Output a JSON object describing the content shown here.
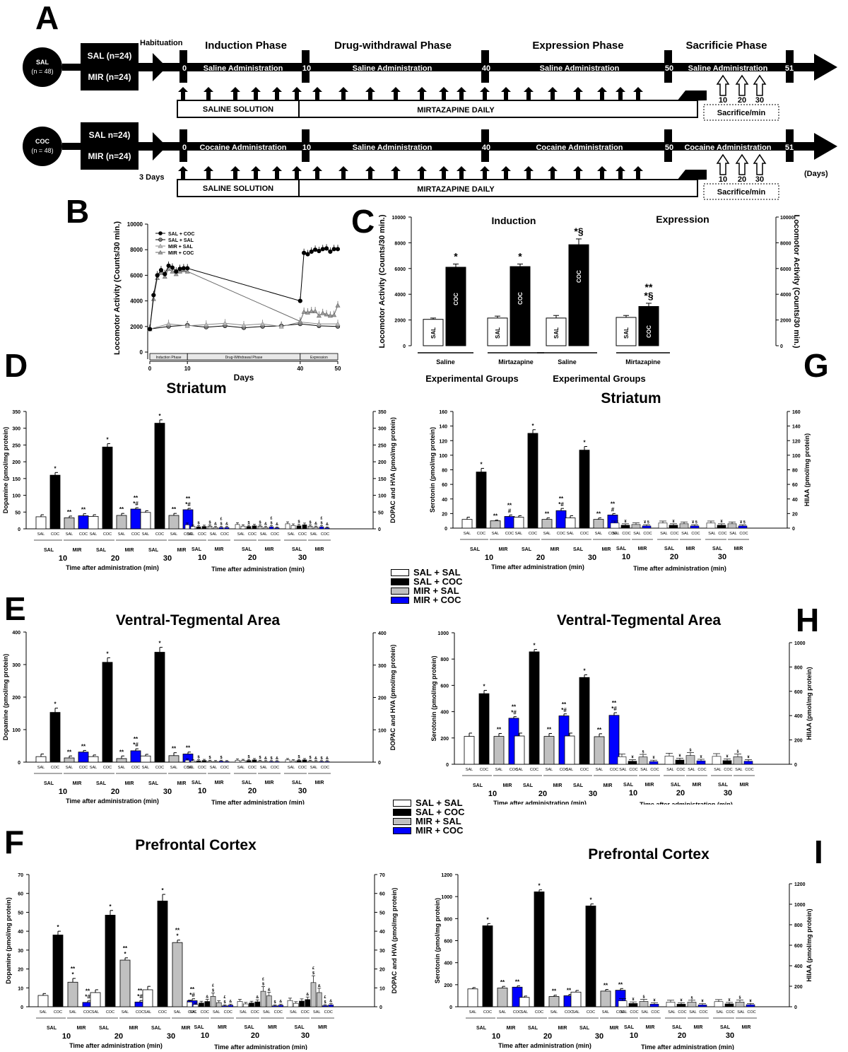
{
  "panels": {
    "A": "A",
    "B": "B",
    "C": "C",
    "D": "D",
    "E": "E",
    "F": "F",
    "G": "G",
    "H": "H",
    "I": "I"
  },
  "colors": {
    "sal_sal": "#ffffff",
    "sal_coc": "#000000",
    "mir_sal": "#c0c0c0",
    "mir_coc": "#0000ff"
  },
  "timeline": {
    "habituation": "Habituation",
    "three_days": "3 Days",
    "days_unit": "(Days)",
    "phases": [
      "Induction Phase",
      "Drug-withdrawal Phase",
      "Expression Phase",
      "Sacrificie Phase"
    ],
    "ticks": [
      "0",
      "10",
      "40",
      "50",
      "51"
    ],
    "sacrifice_times": [
      "10",
      "20",
      "30"
    ],
    "sacrifice_label": "Sacrifice/min",
    "saline_solution": "SALINE SOLUTION",
    "mirtazapine_daily": "MIRTAZAPINE DAILY",
    "rows": [
      {
        "circle_top": "SAL",
        "circle_bottom": "(n = 48)",
        "box_top": "SAL (n=24)",
        "box_bottom": "MIR (n=24)",
        "segments": [
          "Saline Administration",
          "Saline Administration",
          "Saline Administration",
          "Saline Administration"
        ]
      },
      {
        "circle_top": "COC",
        "circle_bottom": "(n = 48)",
        "box_top": "SAL n=24)",
        "box_bottom": "MIR (n=24)",
        "segments": [
          "Cocaine Administration",
          "Saline Administration",
          "Cocaine Administration",
          "Cocaine Administration"
        ]
      }
    ]
  },
  "legend": {
    "items": [
      "SAL + SAL",
      "SAL + COC",
      "MIR + SAL",
      "MIR + COC"
    ]
  },
  "chart_data": [
    {
      "id": "B",
      "type": "line",
      "xlabel": "Days",
      "ylabel": "Locomotor Activity (Counts/30 min.)",
      "xlim": [
        0,
        50
      ],
      "ylim": [
        0,
        10000
      ],
      "xticks": [
        "0",
        "10",
        "40",
        "50"
      ],
      "yticks": [
        "0",
        "2000",
        "4000",
        "6000",
        "8000",
        "10000"
      ],
      "legend": [
        "SAL + COC",
        "SAL + SAL",
        "MIR + SAL",
        "MIR + COC"
      ],
      "legend_position": "top-left",
      "phase_bar": [
        "Induction Phase",
        "Drug-Withdrawal Phase",
        "Expression"
      ],
      "series": [
        {
          "name": "SAL + COC",
          "x": [
            0,
            1,
            2,
            3,
            4,
            5,
            6,
            7,
            8,
            9,
            10,
            40,
            41,
            42,
            43,
            44,
            45,
            46,
            47,
            48,
            49,
            50
          ],
          "y": [
            1800,
            4450,
            6000,
            6400,
            6100,
            6750,
            6600,
            6300,
            6500,
            6550,
            6550,
            4000,
            7750,
            7650,
            7850,
            8000,
            7900,
            8050,
            8100,
            7850,
            8050,
            8050
          ]
        },
        {
          "name": "SAL + SAL",
          "x": [
            0,
            5,
            10,
            15,
            20,
            25,
            30,
            35,
            40,
            45,
            50
          ],
          "y": [
            1800,
            2000,
            2100,
            1950,
            2050,
            1900,
            2000,
            2050,
            2200,
            2050,
            2000
          ]
        },
        {
          "name": "MIR + SAL",
          "x": [
            0,
            5,
            10,
            15,
            20,
            25,
            30,
            35,
            40,
            45,
            50
          ],
          "y": [
            1800,
            2200,
            2050,
            2150,
            2250,
            2100,
            2200,
            2000,
            2350,
            2200,
            2200
          ]
        },
        {
          "name": "MIR + COC",
          "x": [
            0,
            1,
            2,
            3,
            4,
            5,
            6,
            7,
            8,
            9,
            10,
            40,
            41,
            42,
            43,
            44,
            45,
            46,
            47,
            48,
            49,
            50
          ],
          "y": [
            1800,
            4150,
            5800,
            6200,
            5900,
            6500,
            6300,
            6100,
            6300,
            6400,
            6300,
            2400,
            3150,
            3100,
            3200,
            3200,
            2850,
            3050,
            2950,
            2850,
            2900,
            3650
          ]
        }
      ]
    },
    {
      "id": "C",
      "type": "bar",
      "ylabel": "Locomotor Activity (Counts/30 min.)",
      "ylabel_right": "Locomotor Activity (Counts/30 min.)",
      "ylim": [
        0,
        10000
      ],
      "yticks": [
        "0",
        "2000",
        "4000",
        "6000",
        "8000",
        "10000"
      ],
      "titles": [
        "Induction",
        "Expression"
      ],
      "xlabel": "Experimental Groups",
      "groups": [
        {
          "label": "Saline",
          "bars": [
            {
              "name": "SAL",
              "value": 2050,
              "err": 100
            },
            {
              "name": "COC",
              "value": 6100,
              "err": 250,
              "mark": "*"
            }
          ]
        },
        {
          "label": "Mirtazapine",
          "bars": [
            {
              "name": "SAL",
              "value": 2150,
              "err": 150
            },
            {
              "name": "COC",
              "value": 6150,
              "err": 200,
              "mark": "*"
            }
          ]
        },
        {
          "label": "Saline",
          "bars": [
            {
              "name": "SAL",
              "value": 2150,
              "err": 200
            },
            {
              "name": "COC",
              "value": 7850,
              "err": 450,
              "mark": "*§"
            }
          ]
        },
        {
          "label": "Mirtazapine",
          "bars": [
            {
              "name": "SAL",
              "value": 2200,
              "err": 150
            },
            {
              "name": "COC",
              "value": 3050,
              "err": 250,
              "mark": "**|*§"
            }
          ]
        }
      ]
    },
    {
      "id": "D",
      "type": "bar",
      "title": "Striatum",
      "ylabel": "Dopamine (pmol/mg protein)",
      "ylabel_right": "DOPAC and HVA (pmol/mg protein)",
      "ylim": [
        0,
        350
      ],
      "yticks": [
        "0",
        "50",
        "100",
        "150",
        "200",
        "250",
        "300",
        "350"
      ],
      "xlabel": "Time after administration (min)",
      "times": [
        "10",
        "20",
        "30"
      ],
      "main": [
        [
          36,
          160,
          33,
          39
        ],
        [
          37,
          244,
          40,
          59
        ],
        [
          49,
          315,
          40,
          57
        ]
      ],
      "main_err": [
        [
          6,
          8,
          5,
          6
        ],
        [
          5,
          10,
          6,
          4
        ],
        [
          5,
          10,
          6,
          4
        ]
      ],
      "main_marks": [
        [
          "",
          "*",
          "**",
          "**"
        ],
        [
          "",
          "*",
          "**",
          "**|*#"
        ],
        [
          "",
          "*",
          "**",
          "**|*#"
        ]
      ],
      "secondary": [
        [
          12,
          7,
          6,
          7,
          8,
          4,
          4,
          4
        ],
        [
          13,
          8,
          7,
          9,
          8,
          4,
          6,
          3
        ],
        [
          15,
          10,
          9,
          12,
          8,
          5,
          6,
          3
        ]
      ],
      "secondary_marks": [
        [
          "",
          "",
          "$",
          "",
          "$",
          "&",
          "£|$",
          "&"
        ],
        [
          "",
          "",
          "$",
          "",
          "$",
          "&",
          "£|$",
          "&"
        ],
        [
          "",
          "",
          "$",
          "",
          "$",
          "&",
          "£|$",
          "&"
        ]
      ]
    },
    {
      "id": "G",
      "type": "bar",
      "title": "Striatum",
      "ylabel": "Serotonin (pmol/mg protein)",
      "ylabel_right": "HIIAA (pmol/mg protein)",
      "ylim": [
        0,
        160
      ],
      "yticks": [
        "0",
        "20",
        "40",
        "60",
        "80",
        "100",
        "120",
        "140",
        "160"
      ],
      "xlabel": "Time after administration (min)",
      "times": [
        "10",
        "20",
        "30"
      ],
      "main": [
        [
          12,
          77,
          10,
          16
        ],
        [
          15,
          130,
          12,
          24
        ],
        [
          14,
          107,
          12,
          18
        ]
      ],
      "main_err": [
        [
          3,
          5,
          1,
          2
        ],
        [
          2,
          5,
          2,
          3
        ],
        [
          3,
          5,
          2,
          2
        ]
      ],
      "main_marks": [
        [
          "",
          "*",
          "**",
          "**|#"
        ],
        [
          "",
          "*",
          "**",
          "**|*#"
        ],
        [
          "",
          "*",
          "**",
          "**|#"
        ]
      ],
      "secondary": [
        [
          7,
          4,
          5,
          3
        ],
        [
          7,
          4,
          6,
          3
        ],
        [
          7,
          4,
          6,
          3
        ]
      ],
      "secondary_marks": [
        [
          "",
          "¥",
          "",
          "¥ §"
        ],
        [
          "",
          "¥",
          "",
          "¥ §"
        ],
        [
          "",
          "¥",
          "",
          "¥ §"
        ]
      ]
    },
    {
      "id": "E",
      "type": "bar",
      "title": "Ventral-Tegmental Area",
      "ylabel": "Dopamine (pmol/mg protein)",
      "ylabel_right": "DOPAC and HVA (pmol/mg protein)",
      "ylim": [
        0,
        400
      ],
      "yticks": [
        "0",
        "100",
        "200",
        "300",
        "400"
      ],
      "xlabel": "Time after administration (min)",
      "times": [
        "10",
        "20",
        "30"
      ],
      "main": [
        [
          17,
          153,
          13,
          31
        ],
        [
          17,
          307,
          11,
          35
        ],
        [
          19,
          338,
          20,
          25
        ]
      ],
      "main_err": [
        [
          8,
          13,
          6,
          5
        ],
        [
          5,
          14,
          8,
          6
        ],
        [
          5,
          15,
          9,
          6
        ]
      ],
      "main_marks": [
        [
          "",
          "*",
          "**",
          "**"
        ],
        [
          "",
          "*",
          "**",
          "**|*#"
        ],
        [
          "",
          "*",
          "**",
          "**"
        ]
      ],
      "secondary": [
        [
          6,
          4,
          4,
          5,
          3,
          2,
          3,
          2
        ],
        [
          6,
          5,
          5,
          7,
          3,
          2,
          2,
          2
        ],
        [
          7,
          4,
          5,
          7,
          3,
          2,
          2,
          2
        ]
      ],
      "secondary_marks": [
        [
          "",
          "",
          "$",
          "",
          "$",
          "",
          "$",
          ""
        ],
        [
          "",
          "",
          "$",
          "",
          "$",
          "&",
          "$",
          "&"
        ],
        [
          "",
          "",
          "$",
          "",
          "$",
          "&",
          "$",
          "&"
        ]
      ]
    },
    {
      "id": "H",
      "type": "bar",
      "title": "Ventral-Tegmental Area",
      "ylabel": "Serotonin (pmol/mg protein)",
      "ylabel_right": "HIIAA (pmol/mg protein)",
      "ylim": [
        0,
        1000
      ],
      "yticks": [
        "0",
        "200",
        "400",
        "600",
        "800",
        "1000"
      ],
      "xlabel": "Time after administration (min)",
      "times": [
        "10",
        "20",
        "30"
      ],
      "main": [
        [
          212,
          537,
          212,
          350
        ],
        [
          215,
          855,
          212,
          368
        ],
        [
          215,
          660,
          210,
          372
        ]
      ],
      "main_err": [
        [
          25,
          25,
          22,
          12
        ],
        [
          22,
          18,
          22,
          15
        ],
        [
          22,
          20,
          22,
          20
        ]
      ],
      "main_marks": [
        [
          "",
          "*",
          "**",
          "**|*#"
        ],
        [
          "",
          "*",
          "**",
          "**|*#"
        ],
        [
          "",
          "*",
          "**",
          "**|*#"
        ]
      ],
      "secondary": [
        [
          62,
          25,
          60,
          22
        ],
        [
          68,
          35,
          72,
          28
        ],
        [
          65,
          30,
          62,
          25
        ]
      ],
      "secondary_marks": [
        [
          "",
          "¥",
          "§",
          "¥"
        ],
        [
          "",
          "¥",
          "§",
          "¥"
        ],
        [
          "",
          "¥",
          "§",
          "¥"
        ]
      ]
    },
    {
      "id": "F",
      "type": "bar",
      "title": "Prefrontal Cortex",
      "ylabel": "Dopamine (pmol/mg protein)",
      "ylabel_right": "DOPAC and HVA (pmol/mg protein)",
      "ylim": [
        0,
        70
      ],
      "yticks": [
        "0",
        "10",
        "20",
        "30",
        "40",
        "50",
        "60",
        "70"
      ],
      "xlabel": "Time after administration (min)",
      "times": [
        "10",
        "20",
        "30"
      ],
      "main": [
        [
          6,
          38,
          13,
          2.3
        ],
        [
          7.5,
          48.5,
          24.7,
          2.5
        ],
        [
          9,
          56,
          34,
          3.2
        ]
      ],
      "main_err": [
        [
          1,
          2,
          2,
          0.8
        ],
        [
          1.5,
          2.5,
          1.2,
          0.8
        ],
        [
          1.8,
          3.5,
          1.3,
          1
        ]
      ],
      "main_marks": [
        [
          "",
          "*",
          "**|*",
          "**|*#"
        ],
        [
          "",
          "*",
          "**|*",
          "**|*#"
        ],
        [
          "",
          "*",
          "**|*",
          "**|*#"
        ]
      ],
      "secondary": [
        [
          2.5,
          1.2,
          2,
          2.8,
          5.5,
          2.2,
          0.5,
          0.8
        ],
        [
          2.8,
          1.5,
          2,
          2.6,
          8.2,
          5.8,
          0.5,
          0.8
        ],
        [
          3.3,
          1.8,
          3,
          3.8,
          12.8,
          7.5,
          0.6,
          1
        ]
      ],
      "secondary_marks": [
        [
          "",
          "",
          "",
          "&",
          "£|$",
          "",
          "£|$",
          "&"
        ],
        [
          "",
          "",
          "",
          "&",
          "£|$",
          "&",
          "$",
          "&"
        ],
        [
          "",
          "",
          "",
          "&",
          "£|$",
          "&",
          "£|$",
          "&"
        ]
      ]
    },
    {
      "id": "I",
      "type": "bar",
      "title": "Prefrontal Cortex",
      "ylabel": "Serotonin (pmol/mg protein)",
      "ylabel_right": "HIIAA (pmol/mg protein)",
      "ylim": [
        0,
        1200
      ],
      "yticks": [
        "0",
        "200",
        "400",
        "600",
        "800",
        "1000",
        "1200"
      ],
      "xlabel": "Time after administration (min)",
      "times": [
        "10",
        "20",
        "30"
      ],
      "main": [
        [
          162,
          735,
          170,
          178
        ],
        [
          85,
          1043,
          93,
          100
        ],
        [
          133,
          915,
          142,
          150
        ]
      ],
      "main_err": [
        [
          12,
          20,
          15,
          12
        ],
        [
          12,
          18,
          12,
          12
        ],
        [
          15,
          18,
          15,
          15
        ]
      ],
      "main_marks": [
        [
          "",
          "*",
          "**",
          "**"
        ],
        [
          "",
          "*",
          "**",
          "**"
        ],
        [
          "",
          "*",
          "**",
          "**"
        ]
      ],
      "secondary": [
        [
          58,
          32,
          52,
          25
        ],
        [
          45,
          25,
          45,
          18
        ],
        [
          50,
          28,
          46,
          20
        ]
      ],
      "secondary_marks": [
        [
          "",
          "¥",
          "§",
          "¥"
        ],
        [
          "",
          "¥",
          "§",
          "¥"
        ],
        [
          "",
          "¥",
          "§",
          "¥"
        ]
      ]
    }
  ],
  "axis_words": {
    "sal": "SAL",
    "coc": "COC",
    "mir": "MIR"
  }
}
